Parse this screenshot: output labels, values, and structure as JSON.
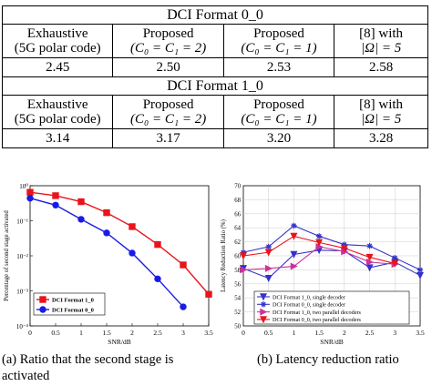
{
  "table": {
    "sections": [
      {
        "title": "DCI Format 0_0",
        "headers": [
          [
            "Exhaustive",
            "(5G polar code)"
          ],
          [
            "Proposed",
            "(C₀ = C₁ = 2)"
          ],
          [
            "Proposed",
            "(C₀ = C₁ = 1)"
          ],
          [
            "[8] with",
            "|Ω| = 5"
          ]
        ],
        "values": [
          "2.45",
          "2.50",
          "2.53",
          "2.58"
        ]
      },
      {
        "title": "DCI Format 1_0",
        "headers": [
          [
            "Exhaustive",
            "(5G polar code)"
          ],
          [
            "Proposed",
            "(C₀ = C₁ = 2)"
          ],
          [
            "Proposed",
            "(C₀ = C₁ = 1)"
          ],
          [
            "[8] with",
            "|Ω| = 5"
          ]
        ],
        "values": [
          "3.14",
          "3.17",
          "3.20",
          "3.28"
        ]
      }
    ]
  },
  "chart_data": [
    {
      "type": "line",
      "title": "",
      "xlabel": "SNR/dB",
      "ylabel": "Percentage of second stage activated",
      "xlim": [
        0,
        3.5
      ],
      "ylim_log10": [
        -4,
        0
      ],
      "yscale": "log",
      "x_ticks": [
        "0",
        "0.5",
        "1",
        "1.5",
        "2",
        "2.5",
        "3",
        "3.5"
      ],
      "y_ticks": [
        "10⁻⁴",
        "10⁻³",
        "10⁻²",
        "10⁻¹",
        "10⁰"
      ],
      "legend_position": "bottom-left",
      "series": [
        {
          "name": "DCI Format 1_0",
          "color": "#e8141c",
          "marker": "square",
          "x": [
            0,
            0.5,
            1,
            1.5,
            2,
            2.5,
            3,
            3.5
          ],
          "y": [
            0.65,
            0.52,
            0.35,
            0.17,
            0.068,
            0.021,
            0.0055,
            0.0008
          ]
        },
        {
          "name": "DCI Format 0_0",
          "color": "#1a1ae6",
          "marker": "circle",
          "x": [
            0,
            0.5,
            1,
            1.5,
            2,
            2.5,
            3
          ],
          "y": [
            0.44,
            0.28,
            0.11,
            0.045,
            0.012,
            0.0022,
            0.00035
          ]
        }
      ]
    },
    {
      "type": "line",
      "title": "",
      "xlabel": "SNR/dB",
      "ylabel": "Latency Reduction Ratio (%)",
      "xlim": [
        0,
        3.5
      ],
      "ylim": [
        50,
        70
      ],
      "x_ticks": [
        "0",
        "0.5",
        "1",
        "1.5",
        "2",
        "2.5",
        "3",
        "3.5"
      ],
      "y_ticks": [
        "50",
        "52",
        "54",
        "56",
        "58",
        "60",
        "62",
        "64",
        "66",
        "68",
        "70"
      ],
      "grid": true,
      "legend_position": "bottom",
      "series": [
        {
          "name": "DCI Format 1_0, single decoder",
          "color": "#3333cc",
          "marker": "triangle-down",
          "x": [
            0,
            0.5,
            1,
            1.5,
            2,
            2.5,
            3,
            3.5
          ],
          "y": [
            58.2,
            56.8,
            60.2,
            60.8,
            60.7,
            58.3,
            59.1,
            57.2
          ]
        },
        {
          "name": "DCI Format 0_0, single decoder",
          "color": "#3333cc",
          "marker": "star",
          "x": [
            0,
            0.5,
            1,
            1.5,
            2,
            2.5,
            3,
            3.5
          ],
          "y": [
            60.5,
            61.3,
            64.3,
            62.8,
            61.6,
            61.4,
            59.7,
            58.0
          ]
        },
        {
          "name": "DCI Format 1_0, two parallel decoders",
          "color": "#cc3399",
          "marker": "triangle-right",
          "x": [
            0,
            0.5,
            1,
            1.5,
            2,
            2.5,
            3
          ],
          "y": [
            58.0,
            58.2,
            58.5,
            61.3,
            60.6,
            59.1,
            58.8
          ]
        },
        {
          "name": "DCI Format 0_0, two parallel decoders",
          "color": "#e8141c",
          "marker": "triangle-down",
          "x": [
            0,
            0.5,
            1,
            1.5,
            2,
            2.5,
            3
          ],
          "y": [
            60.0,
            60.5,
            62.8,
            61.9,
            61.1,
            59.8,
            58.9
          ]
        }
      ]
    }
  ],
  "captions": {
    "a_line1": "(a)  Ratio that the second stage is",
    "a_line2": "activated",
    "b_line1": "(b)  Latency reduction ratio"
  }
}
